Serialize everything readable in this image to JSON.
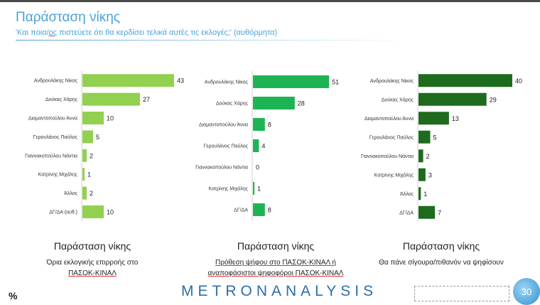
{
  "header": {
    "title": "Παράσταση νίκης",
    "subtitle_pre": "'Και ποια/",
    "subtitle_ul": "ος",
    "subtitle_post": " πιστεύετε ότι θα κερδίσει τελικά αυτές τις εκλογές;' (αυθόρμητα)"
  },
  "chart_data": [
    {
      "type": "bar",
      "orientation": "horizontal",
      "color": "#92d050",
      "categories": [
        "Ανδρουλάκης Νίκος",
        "Δούκας Χάρης",
        "Διαμαντοπούλου Άννα",
        "Γερουλάνος Παύλος",
        "Γιαννακοπούλου Νάντια",
        "Κατρίνης Μιχάλης",
        "Άλλος",
        "ΔΓ/ΔΑ (αυθ.)"
      ],
      "values": [
        43,
        27,
        10,
        5,
        2,
        1,
        2,
        10
      ],
      "caption_title": "Παράσταση νίκης",
      "caption_sub": [
        "Όρια εκλογικής επιρροής στο",
        "ΠΑΣΟΚ-ΚΙΝΑΛ"
      ]
    },
    {
      "type": "bar",
      "orientation": "horizontal",
      "color": "#1eb456",
      "categories": [
        "Ανδρουλάκης Νίκος",
        "Δούκας Χάρης",
        "Διαμαντοπούλου Άννα",
        "Γερουλάνος Παύλος",
        "Γιαννακοπούλου Νάντια",
        "Κατρίνης Μιχάλης",
        "ΔΓ/ΔΑ"
      ],
      "values": [
        51,
        28,
        8,
        4,
        0,
        1,
        8
      ],
      "caption_title": "Παράσταση νίκης",
      "caption_sub": [
        "Πρόθεση ψήφου στο ΠΑΣΟΚ-ΚΙΝΑΛ ή",
        "αναποφάσιστοι ψηφοφόροι ΠΑΣΟΚ-ΚΙΝΑΛ"
      ]
    },
    {
      "type": "bar",
      "orientation": "horizontal",
      "color": "#1e6b1e",
      "categories": [
        "Ανδρουλάκης Νίκος",
        "Δούκας Χάρης",
        "Διαμαντοπούλου Άννα",
        "Γερουλάνος Παύλος",
        "Γιαννακοπούλου Νάντια",
        "Κατρίνης Μιχάλης",
        "Άλλος",
        "ΔΓ/ΔΑ"
      ],
      "values": [
        40,
        29,
        13,
        5,
        2,
        3,
        1,
        7
      ],
      "caption_title": "Παράσταση νίκης",
      "caption_sub": [
        "Θα πάνε σίγουρα/πιθανόν να ψηφίσουν"
      ]
    }
  ],
  "footer": {
    "percent_symbol": "%",
    "brand": "METRONANALYSIS",
    "page_number": "30"
  }
}
